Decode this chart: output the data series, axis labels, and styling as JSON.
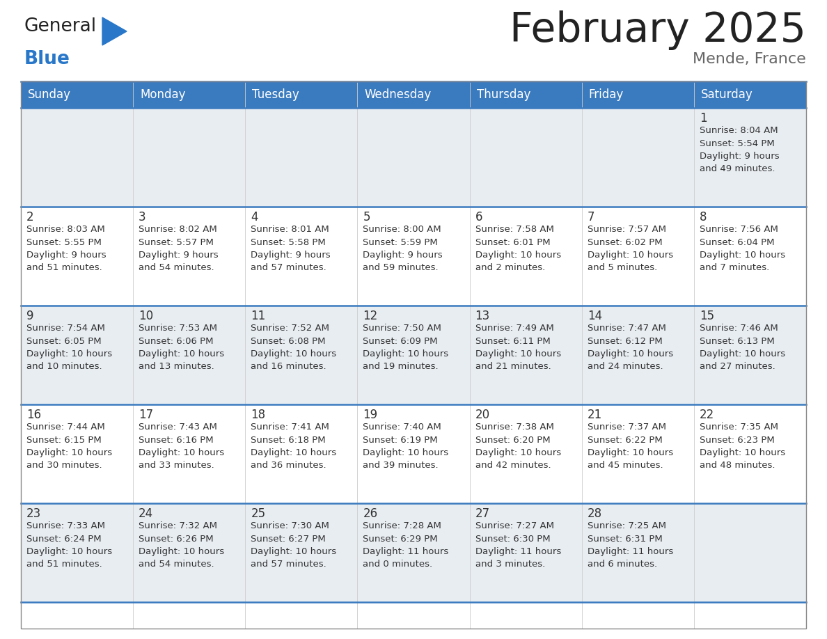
{
  "title": "February 2025",
  "subtitle": "Mende, France",
  "days_of_week": [
    "Sunday",
    "Monday",
    "Tuesday",
    "Wednesday",
    "Thursday",
    "Friday",
    "Saturday"
  ],
  "header_bg": "#3a7abf",
  "header_text": "#ffffff",
  "cell_bg_light": "#e8edf2",
  "cell_bg_white": "#ffffff",
  "day_number_color": "#333333",
  "text_color": "#333333",
  "row_separator_color": "#3a7abf",
  "grid_color": "#cccccc",
  "title_color": "#222222",
  "subtitle_color": "#666666",
  "logo_black": "#222222",
  "logo_blue": "#2977c9",
  "triangle_color": "#2977c9",
  "calendar": [
    [
      null,
      null,
      null,
      null,
      null,
      null,
      1
    ],
    [
      2,
      3,
      4,
      5,
      6,
      7,
      8
    ],
    [
      9,
      10,
      11,
      12,
      13,
      14,
      15
    ],
    [
      16,
      17,
      18,
      19,
      20,
      21,
      22
    ],
    [
      23,
      24,
      25,
      26,
      27,
      28,
      null
    ]
  ],
  "cell_data": {
    "1": {
      "sunrise": "8:04 AM",
      "sunset": "5:54 PM",
      "daylight": "9 hours",
      "daylight2": "and 49 minutes."
    },
    "2": {
      "sunrise": "8:03 AM",
      "sunset": "5:55 PM",
      "daylight": "9 hours",
      "daylight2": "and 51 minutes."
    },
    "3": {
      "sunrise": "8:02 AM",
      "sunset": "5:57 PM",
      "daylight": "9 hours",
      "daylight2": "and 54 minutes."
    },
    "4": {
      "sunrise": "8:01 AM",
      "sunset": "5:58 PM",
      "daylight": "9 hours",
      "daylight2": "and 57 minutes."
    },
    "5": {
      "sunrise": "8:00 AM",
      "sunset": "5:59 PM",
      "daylight": "9 hours",
      "daylight2": "and 59 minutes."
    },
    "6": {
      "sunrise": "7:58 AM",
      "sunset": "6:01 PM",
      "daylight": "10 hours",
      "daylight2": "and 2 minutes."
    },
    "7": {
      "sunrise": "7:57 AM",
      "sunset": "6:02 PM",
      "daylight": "10 hours",
      "daylight2": "and 5 minutes."
    },
    "8": {
      "sunrise": "7:56 AM",
      "sunset": "6:04 PM",
      "daylight": "10 hours",
      "daylight2": "and 7 minutes."
    },
    "9": {
      "sunrise": "7:54 AM",
      "sunset": "6:05 PM",
      "daylight": "10 hours",
      "daylight2": "and 10 minutes."
    },
    "10": {
      "sunrise": "7:53 AM",
      "sunset": "6:06 PM",
      "daylight": "10 hours",
      "daylight2": "and 13 minutes."
    },
    "11": {
      "sunrise": "7:52 AM",
      "sunset": "6:08 PM",
      "daylight": "10 hours",
      "daylight2": "and 16 minutes."
    },
    "12": {
      "sunrise": "7:50 AM",
      "sunset": "6:09 PM",
      "daylight": "10 hours",
      "daylight2": "and 19 minutes."
    },
    "13": {
      "sunrise": "7:49 AM",
      "sunset": "6:11 PM",
      "daylight": "10 hours",
      "daylight2": "and 21 minutes."
    },
    "14": {
      "sunrise": "7:47 AM",
      "sunset": "6:12 PM",
      "daylight": "10 hours",
      "daylight2": "and 24 minutes."
    },
    "15": {
      "sunrise": "7:46 AM",
      "sunset": "6:13 PM",
      "daylight": "10 hours",
      "daylight2": "and 27 minutes."
    },
    "16": {
      "sunrise": "7:44 AM",
      "sunset": "6:15 PM",
      "daylight": "10 hours",
      "daylight2": "and 30 minutes."
    },
    "17": {
      "sunrise": "7:43 AM",
      "sunset": "6:16 PM",
      "daylight": "10 hours",
      "daylight2": "and 33 minutes."
    },
    "18": {
      "sunrise": "7:41 AM",
      "sunset": "6:18 PM",
      "daylight": "10 hours",
      "daylight2": "and 36 minutes."
    },
    "19": {
      "sunrise": "7:40 AM",
      "sunset": "6:19 PM",
      "daylight": "10 hours",
      "daylight2": "and 39 minutes."
    },
    "20": {
      "sunrise": "7:38 AM",
      "sunset": "6:20 PM",
      "daylight": "10 hours",
      "daylight2": "and 42 minutes."
    },
    "21": {
      "sunrise": "7:37 AM",
      "sunset": "6:22 PM",
      "daylight": "10 hours",
      "daylight2": "and 45 minutes."
    },
    "22": {
      "sunrise": "7:35 AM",
      "sunset": "6:23 PM",
      "daylight": "10 hours",
      "daylight2": "and 48 minutes."
    },
    "23": {
      "sunrise": "7:33 AM",
      "sunset": "6:24 PM",
      "daylight": "10 hours",
      "daylight2": "and 51 minutes."
    },
    "24": {
      "sunrise": "7:32 AM",
      "sunset": "6:26 PM",
      "daylight": "10 hours",
      "daylight2": "and 54 minutes."
    },
    "25": {
      "sunrise": "7:30 AM",
      "sunset": "6:27 PM",
      "daylight": "10 hours",
      "daylight2": "and 57 minutes."
    },
    "26": {
      "sunrise": "7:28 AM",
      "sunset": "6:29 PM",
      "daylight": "11 hours",
      "daylight2": "and 0 minutes."
    },
    "27": {
      "sunrise": "7:27 AM",
      "sunset": "6:30 PM",
      "daylight": "11 hours",
      "daylight2": "and 3 minutes."
    },
    "28": {
      "sunrise": "7:25 AM",
      "sunset": "6:31 PM",
      "daylight": "11 hours",
      "daylight2": "and 6 minutes."
    }
  }
}
